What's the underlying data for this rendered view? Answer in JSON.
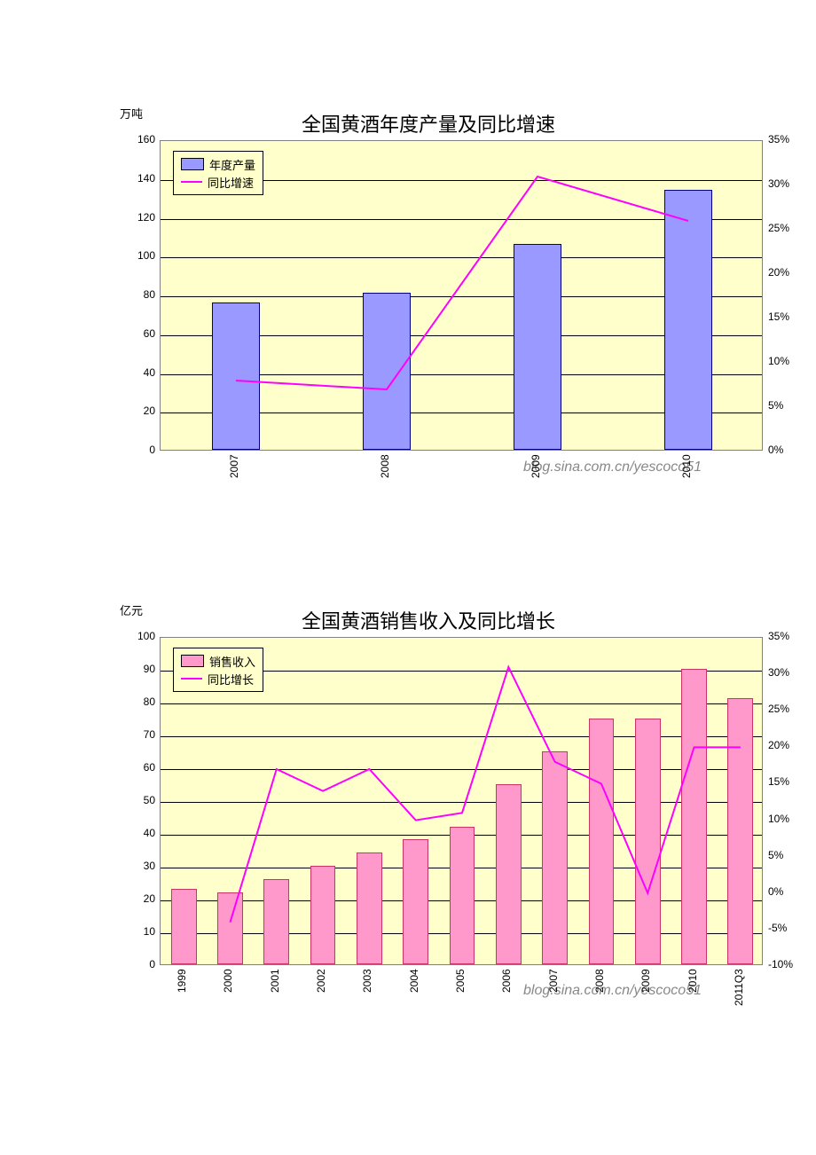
{
  "chart1": {
    "type": "bar-line",
    "y_unit_label": "万吨",
    "title": "全国黄酒年度产量及同比增速",
    "title_fontsize": 22,
    "plot_bg": "#ffffcc",
    "grid_color": "#000000",
    "categories": [
      "2007",
      "2008",
      "2009",
      "2010"
    ],
    "bar_series": {
      "name": "年度产量",
      "color": "#9999ff",
      "border": "#000080",
      "values": [
        76,
        81,
        106,
        134
      ]
    },
    "line_series": {
      "name": "同比增速",
      "color": "#ff00ff",
      "values": [
        8,
        7,
        31,
        26
      ]
    },
    "y_left": {
      "min": 0,
      "max": 160,
      "step": 20
    },
    "y_right": {
      "min": 0,
      "max": 35,
      "step": 5,
      "suffix": "%"
    },
    "bar_width_rel": 0.32,
    "legend": {
      "position": "top-left",
      "items": [
        {
          "type": "swatch",
          "color": "#9999ff",
          "label": "年度产量"
        },
        {
          "type": "line",
          "color": "#ff00ff",
          "label": "同比增速"
        }
      ]
    }
  },
  "chart2": {
    "type": "bar-line",
    "y_unit_label": "亿元",
    "title": "全国黄酒销售收入及同比增长",
    "title_fontsize": 22,
    "plot_bg": "#ffffcc",
    "grid_color": "#000000",
    "categories": [
      "1999",
      "2000",
      "2001",
      "2002",
      "2003",
      "2004",
      "2005",
      "2006",
      "2007",
      "2008",
      "2009",
      "2010",
      "2011Q3"
    ],
    "bar_series": {
      "name": "销售收入",
      "color": "#ff99cc",
      "border": "#cc3366",
      "values": [
        23,
        22,
        26,
        30,
        34,
        38,
        42,
        55,
        65,
        75,
        75,
        90,
        81
      ]
    },
    "line_series": {
      "name": "同比增长",
      "color": "#ff00ff",
      "values": [
        null,
        -4,
        17,
        14,
        17,
        10,
        11,
        31,
        18,
        15,
        0,
        20,
        20
      ]
    },
    "y_left": {
      "min": 0,
      "max": 100,
      "step": 10
    },
    "y_right": {
      "min": -10,
      "max": 35,
      "step": 5,
      "suffix": "%"
    },
    "bar_width_rel": 0.55,
    "legend": {
      "position": "top-left",
      "items": [
        {
          "type": "swatch",
          "color": "#ff99cc",
          "label": "销售收入"
        },
        {
          "type": "line",
          "color": "#ff00ff",
          "label": "同比增长"
        }
      ]
    }
  },
  "watermark": "blog.sina.com.cn/yescoco51"
}
